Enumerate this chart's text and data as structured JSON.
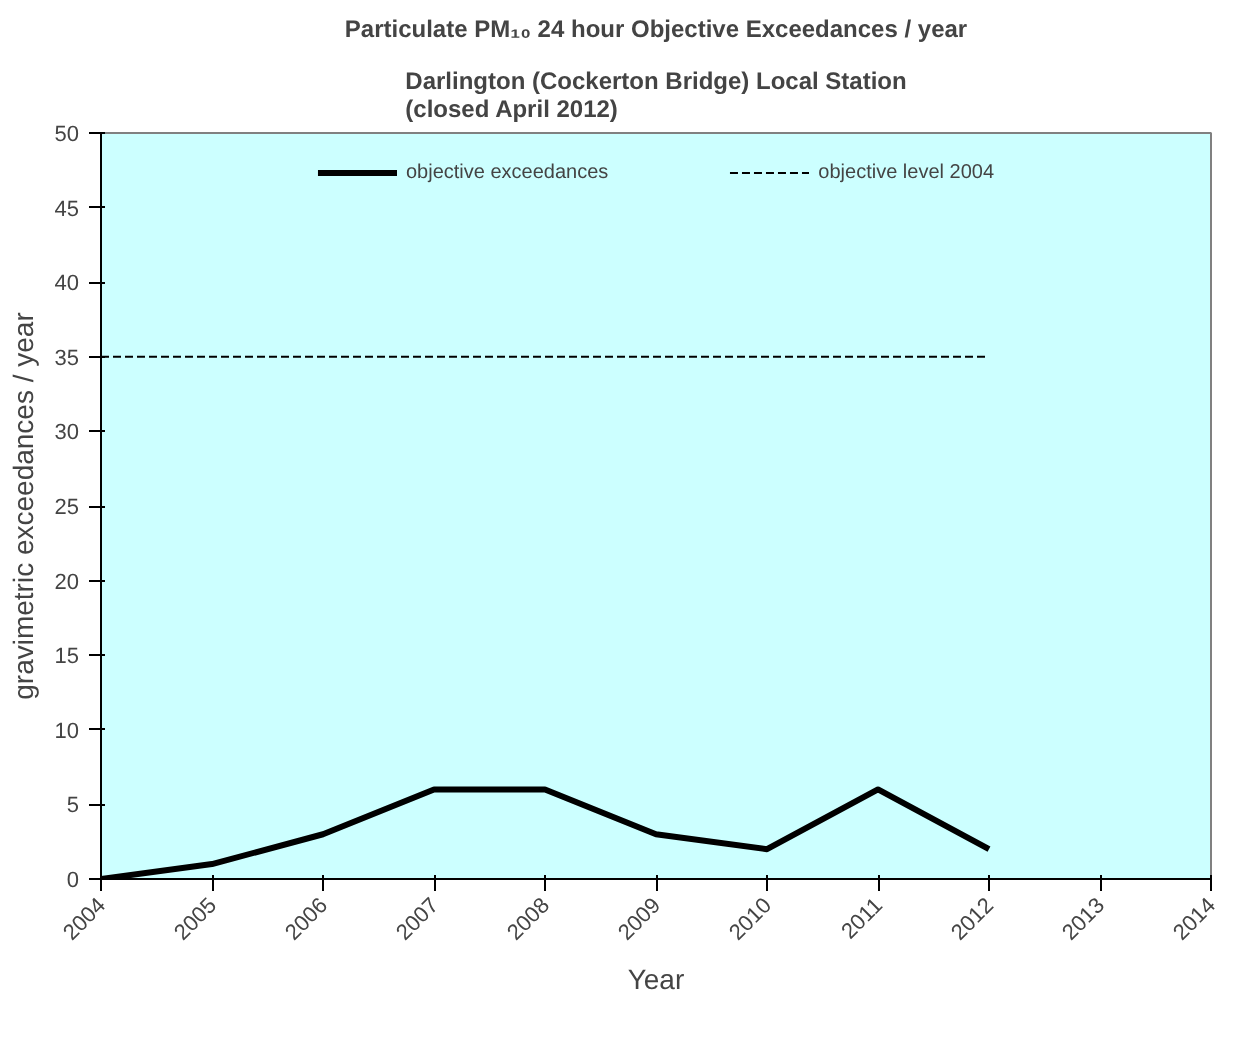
{
  "chart_data": {
    "type": "line",
    "title": "Particulate PM₁₀ 24 hour Objective Exceedances / year",
    "subtitle": "Darlington (Cockerton Bridge) Local Station\n(closed April 2012)",
    "xlabel": "Year",
    "ylabel": "gravimetric exceedances / year",
    "series": [
      {
        "name": "objective exceedances",
        "color": "#000000",
        "line_style": "solid",
        "x": [
          2004,
          2005,
          2006,
          2007,
          2008,
          2009,
          2010,
          2011,
          2012
        ],
        "values": [
          0,
          1,
          3,
          6,
          6,
          3,
          2,
          6,
          2
        ]
      },
      {
        "name": "objective level 2004",
        "color": "#000000",
        "line_style": "dashed",
        "x": [
          2004,
          2005,
          2006,
          2007,
          2008,
          2009,
          2010,
          2011,
          2012
        ],
        "values": [
          35,
          35,
          35,
          35,
          35,
          35,
          35,
          35,
          35
        ]
      }
    ],
    "xlim": [
      2004,
      2014
    ],
    "xticks": [
      2004,
      2005,
      2006,
      2007,
      2008,
      2009,
      2010,
      2011,
      2012,
      2013,
      2014
    ],
    "ylim": [
      0,
      50
    ],
    "yticks": [
      0,
      5,
      10,
      15,
      20,
      25,
      30,
      35,
      40,
      45,
      50
    ],
    "grid": false,
    "legend": "top",
    "marker": "none"
  }
}
